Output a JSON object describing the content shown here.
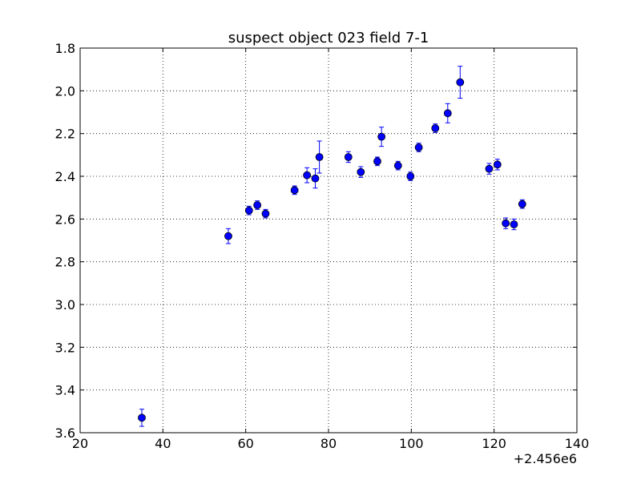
{
  "chart_data": {
    "type": "scatter",
    "title": "suspect object 023 field 7-1",
    "xlabel": "",
    "ylabel": "",
    "x_offset_label": "+2.456e6",
    "xlim": [
      20,
      140
    ],
    "ylim": [
      1.8,
      3.6
    ],
    "y_inverted": true,
    "grid": true,
    "x_ticks": [
      "20",
      "40",
      "60",
      "80",
      "100",
      "120",
      "140"
    ],
    "y_ticks": [
      "1.8",
      "2.0",
      "2.2",
      "2.4",
      "2.6",
      "2.8",
      "3.0",
      "3.2",
      "3.4",
      "3.6"
    ],
    "marker_color": "#0000ff",
    "series": [
      {
        "points": [
          {
            "x": 34.9,
            "y": 3.53,
            "err": 0.04
          },
          {
            "x": 55.8,
            "y": 2.68,
            "err": 0.035
          },
          {
            "x": 60.8,
            "y": 2.56,
            "err": 0.02
          },
          {
            "x": 62.8,
            "y": 2.535,
            "err": 0.02
          },
          {
            "x": 64.8,
            "y": 2.575,
            "err": 0.02
          },
          {
            "x": 71.8,
            "y": 2.465,
            "err": 0.02
          },
          {
            "x": 74.8,
            "y": 2.395,
            "err": 0.035
          },
          {
            "x": 76.8,
            "y": 2.41,
            "err": 0.045
          },
          {
            "x": 77.8,
            "y": 2.31,
            "err": 0.075
          },
          {
            "x": 84.8,
            "y": 2.31,
            "err": 0.025
          },
          {
            "x": 87.8,
            "y": 2.38,
            "err": 0.025
          },
          {
            "x": 91.8,
            "y": 2.33,
            "err": 0.02
          },
          {
            "x": 92.8,
            "y": 2.215,
            "err": 0.045
          },
          {
            "x": 96.8,
            "y": 2.35,
            "err": 0.02
          },
          {
            "x": 99.8,
            "y": 2.4,
            "err": 0.02
          },
          {
            "x": 101.8,
            "y": 2.265,
            "err": 0.02
          },
          {
            "x": 105.8,
            "y": 2.175,
            "err": 0.02
          },
          {
            "x": 108.8,
            "y": 2.105,
            "err": 0.045
          },
          {
            "x": 111.8,
            "y": 1.96,
            "err": 0.075
          },
          {
            "x": 118.8,
            "y": 2.365,
            "err": 0.025
          },
          {
            "x": 120.8,
            "y": 2.345,
            "err": 0.025
          },
          {
            "x": 122.8,
            "y": 2.62,
            "err": 0.025
          },
          {
            "x": 124.8,
            "y": 2.625,
            "err": 0.025
          },
          {
            "x": 126.8,
            "y": 2.53,
            "err": 0.02
          }
        ]
      }
    ]
  }
}
